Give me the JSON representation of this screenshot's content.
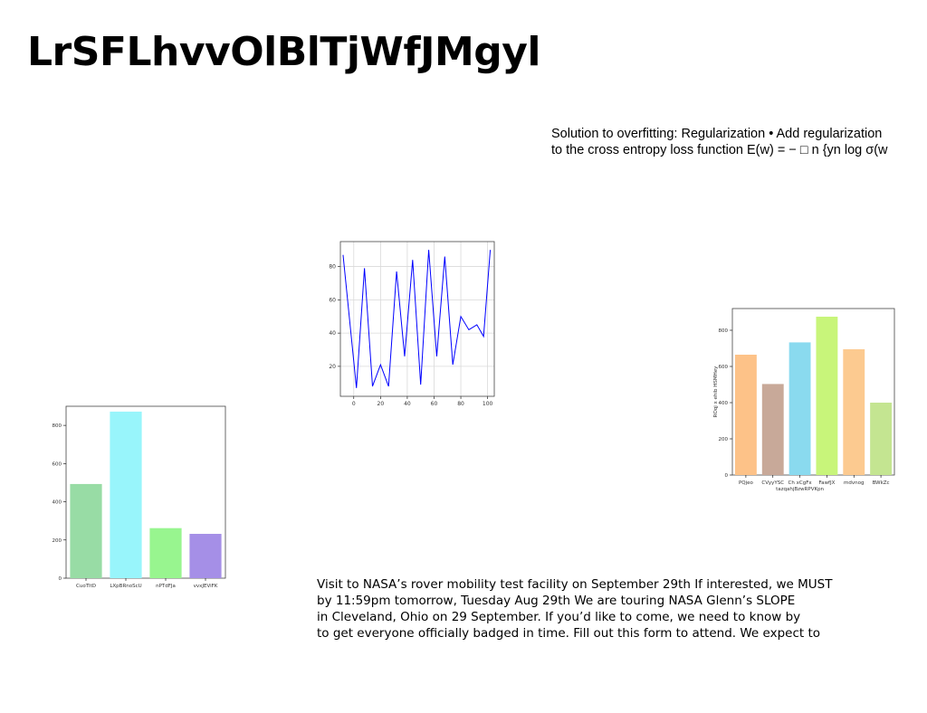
{
  "title": "LrSFLhvvOlBlTjWfJMgyl",
  "snippet": {
    "lines": [
      "Solution to overfitting: Regularization • Add regularization",
      "to the cross entropy loss function E(w) = − □ n {yn log σ(w"
    ]
  },
  "notice": {
    "lines": [
      "Visit to NASA’s rover mobility test facility on September 29th If interested, we MUST",
      "by 11:59pm tomorrow, Tuesday Aug 29th We are touring NASA Glenn’s SLOPE",
      "in Cleveland, Ohio on 29 September. If you’d like to come, we need to know by",
      "to get everyone officially badged in time. Fill out this form to attend. We expect to"
    ]
  },
  "chart_data": [
    {
      "id": "line",
      "type": "line",
      "title": "",
      "xlabel": "",
      "ylabel": "",
      "grid": true,
      "xlim": [
        -10,
        105
      ],
      "ylim": [
        2,
        95
      ],
      "xticks": [
        0,
        20,
        40,
        60,
        80,
        100
      ],
      "yticks": [
        20,
        40,
        60,
        80
      ],
      "color": "#0000ff",
      "x": [
        -8,
        -3,
        2,
        8,
        14,
        20,
        26,
        32,
        38,
        44,
        50,
        56,
        62,
        68,
        74,
        80,
        86,
        92,
        97,
        102
      ],
      "y": [
        87,
        47,
        7,
        79,
        8,
        21,
        8,
        77,
        26,
        84,
        9,
        90,
        26,
        86,
        21,
        50,
        42,
        45,
        38,
        90
      ]
    },
    {
      "id": "bar_left",
      "type": "bar",
      "title": "",
      "xlabel": "",
      "ylabel": "",
      "ylim": [
        0,
        900
      ],
      "yticks": [
        0,
        200,
        400,
        600,
        800
      ],
      "categories": [
        "CuoTltD",
        "LXpBRnoScU",
        "nPTdFJa",
        "vvxJEViFK"
      ],
      "values": [
        493,
        872,
        262,
        232
      ],
      "colors": [
        "#98dca5",
        "#98f5fb",
        "#98f58f",
        "#a58fe7"
      ]
    },
    {
      "id": "bar_right",
      "type": "bar",
      "title": "",
      "xlabel": "",
      "ylabel": "ROqj x ehib HSMHey",
      "ylim": [
        0,
        920
      ],
      "yticks": [
        0,
        200,
        400,
        600,
        800
      ],
      "categories": [
        "PQjeo",
        "CVyyYSC",
        "Ch xCgFx\ntazqahjBzwRPVKpn",
        "FawfJX",
        "mdvnog",
        "BWkZc"
      ],
      "values": [
        665,
        503,
        733,
        875,
        695,
        400
      ],
      "colors": [
        "#fdc288",
        "#c8a999",
        "#8adaef",
        "#c8f57a",
        "#fcca90",
        "#c4e591"
      ]
    }
  ]
}
